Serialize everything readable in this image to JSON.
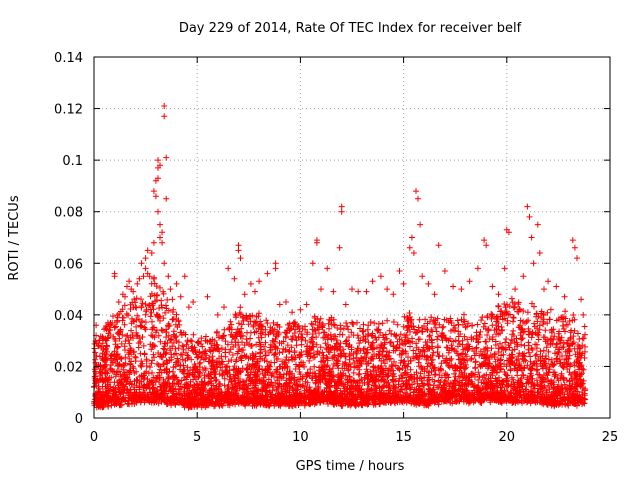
{
  "chart_data": {
    "type": "scatter",
    "title": "Day 229 of 2014, Rate Of TEC Index for receiver belf",
    "xlabel": "GPS time / hours",
    "ylabel": "ROTI / TECUs",
    "xlim": [
      0,
      25
    ],
    "ylim": [
      0,
      0.14
    ],
    "xticks": [
      0,
      5,
      10,
      15,
      20,
      25
    ],
    "yticks": [
      0,
      0.02,
      0.04,
      0.06,
      0.08,
      0.1,
      0.12,
      0.14
    ],
    "xtick_labels": [
      "0",
      "5",
      "10",
      "15",
      "20",
      "25"
    ],
    "ytick_labels": [
      "0",
      "0.02",
      "0.04",
      "0.06",
      "0.08",
      "0.1",
      "0.12",
      "0.14"
    ],
    "grid": true,
    "marker": "+",
    "color": "#ff0000",
    "series": [
      {
        "name": "ROTI",
        "points": [
          [
            0.0,
            0.012
          ],
          [
            0.1,
            0.032
          ],
          [
            0.1,
            0.036
          ],
          [
            0.2,
            0.02
          ],
          [
            0.3,
            0.015
          ],
          [
            0.4,
            0.031
          ],
          [
            0.6,
            0.028
          ],
          [
            0.8,
            0.024
          ],
          [
            1.0,
            0.056
          ],
          [
            1.0,
            0.055
          ],
          [
            1.2,
            0.045
          ],
          [
            1.4,
            0.048
          ],
          [
            1.5,
            0.047
          ],
          [
            1.6,
            0.051
          ],
          [
            1.7,
            0.053
          ],
          [
            1.8,
            0.05
          ],
          [
            1.9,
            0.049
          ],
          [
            2.0,
            0.043
          ],
          [
            2.1,
            0.052
          ],
          [
            2.2,
            0.054
          ],
          [
            2.3,
            0.06
          ],
          [
            2.4,
            0.055
          ],
          [
            2.5,
            0.058
          ],
          [
            2.5,
            0.062
          ],
          [
            2.6,
            0.065
          ],
          [
            2.6,
            0.056
          ],
          [
            2.7,
            0.055
          ],
          [
            2.8,
            0.064
          ],
          [
            2.9,
            0.068
          ],
          [
            2.9,
            0.088
          ],
          [
            3.0,
            0.092
          ],
          [
            3.0,
            0.086
          ],
          [
            3.1,
            0.1
          ],
          [
            3.1,
            0.097
          ],
          [
            3.1,
            0.093
          ],
          [
            3.1,
            0.08
          ],
          [
            3.2,
            0.098
          ],
          [
            3.2,
            0.07
          ],
          [
            3.2,
            0.075
          ],
          [
            3.3,
            0.068
          ],
          [
            3.3,
            0.072
          ],
          [
            3.4,
            0.121
          ],
          [
            3.4,
            0.117
          ],
          [
            3.5,
            0.101
          ],
          [
            3.5,
            0.085
          ],
          [
            3.4,
            0.06
          ],
          [
            3.6,
            0.055
          ],
          [
            3.7,
            0.05
          ],
          [
            3.8,
            0.046
          ],
          [
            4.0,
            0.052
          ],
          [
            4.2,
            0.047
          ],
          [
            4.4,
            0.055
          ],
          [
            4.6,
            0.043
          ],
          [
            4.8,
            0.045
          ],
          [
            5.2,
            0.031
          ],
          [
            5.5,
            0.047
          ],
          [
            6.0,
            0.04
          ],
          [
            6.3,
            0.043
          ],
          [
            6.5,
            0.058
          ],
          [
            6.8,
            0.054
          ],
          [
            7.0,
            0.067
          ],
          [
            7.0,
            0.065
          ],
          [
            7.1,
            0.062
          ],
          [
            7.3,
            0.048
          ],
          [
            7.6,
            0.052
          ],
          [
            7.8,
            0.049
          ],
          [
            8.0,
            0.053
          ],
          [
            8.4,
            0.056
          ],
          [
            8.8,
            0.06
          ],
          [
            8.8,
            0.058
          ],
          [
            9.0,
            0.044
          ],
          [
            9.3,
            0.045
          ],
          [
            9.6,
            0.041
          ],
          [
            10.0,
            0.042
          ],
          [
            10.3,
            0.044
          ],
          [
            10.6,
            0.06
          ],
          [
            10.8,
            0.069
          ],
          [
            10.8,
            0.068
          ],
          [
            11.0,
            0.05
          ],
          [
            11.3,
            0.058
          ],
          [
            11.6,
            0.049
          ],
          [
            11.9,
            0.066
          ],
          [
            12.0,
            0.082
          ],
          [
            12.0,
            0.08
          ],
          [
            12.2,
            0.044
          ],
          [
            12.5,
            0.05
          ],
          [
            12.8,
            0.049
          ],
          [
            13.2,
            0.049
          ],
          [
            13.5,
            0.053
          ],
          [
            13.9,
            0.055
          ],
          [
            14.2,
            0.05
          ],
          [
            14.5,
            0.048
          ],
          [
            14.8,
            0.057
          ],
          [
            15.0,
            0.052
          ],
          [
            15.3,
            0.066
          ],
          [
            15.4,
            0.07
          ],
          [
            15.5,
            0.064
          ],
          [
            15.6,
            0.088
          ],
          [
            15.7,
            0.085
          ],
          [
            15.8,
            0.075
          ],
          [
            15.9,
            0.055
          ],
          [
            16.2,
            0.052
          ],
          [
            16.5,
            0.048
          ],
          [
            16.7,
            0.067
          ],
          [
            17.0,
            0.057
          ],
          [
            17.4,
            0.051
          ],
          [
            17.8,
            0.05
          ],
          [
            18.2,
            0.053
          ],
          [
            18.6,
            0.058
          ],
          [
            18.9,
            0.069
          ],
          [
            19.0,
            0.067
          ],
          [
            19.3,
            0.051
          ],
          [
            19.6,
            0.048
          ],
          [
            19.9,
            0.058
          ],
          [
            20.0,
            0.073
          ],
          [
            20.1,
            0.072
          ],
          [
            20.4,
            0.05
          ],
          [
            20.8,
            0.055
          ],
          [
            21.0,
            0.082
          ],
          [
            21.1,
            0.078
          ],
          [
            21.2,
            0.07
          ],
          [
            21.3,
            0.06
          ],
          [
            21.5,
            0.075
          ],
          [
            21.6,
            0.064
          ],
          [
            21.8,
            0.05
          ],
          [
            22.0,
            0.053
          ],
          [
            22.4,
            0.051
          ],
          [
            22.8,
            0.047
          ],
          [
            23.2,
            0.069
          ],
          [
            23.3,
            0.066
          ],
          [
            23.4,
            0.062
          ],
          [
            23.6,
            0.046
          ],
          [
            23.7,
            0.04
          ]
        ],
        "envelope_hours": [
          0,
          1,
          2,
          3,
          4,
          5,
          6,
          7,
          8,
          9,
          10,
          11,
          12,
          13,
          14,
          15,
          16,
          17,
          18,
          19,
          20,
          21,
          22,
          23,
          23.8
        ],
        "envelope_max": [
          0.03,
          0.042,
          0.046,
          0.055,
          0.04,
          0.03,
          0.033,
          0.042,
          0.04,
          0.036,
          0.038,
          0.04,
          0.038,
          0.037,
          0.038,
          0.04,
          0.039,
          0.04,
          0.04,
          0.04,
          0.045,
          0.045,
          0.042,
          0.04,
          0.035
        ],
        "envelope_base": [
          0.005,
          0.006,
          0.006,
          0.007,
          0.006,
          0.005,
          0.006,
          0.006,
          0.006,
          0.006,
          0.006,
          0.007,
          0.006,
          0.006,
          0.007,
          0.007,
          0.006,
          0.007,
          0.007,
          0.007,
          0.007,
          0.007,
          0.006,
          0.006,
          0.006
        ]
      }
    ]
  }
}
